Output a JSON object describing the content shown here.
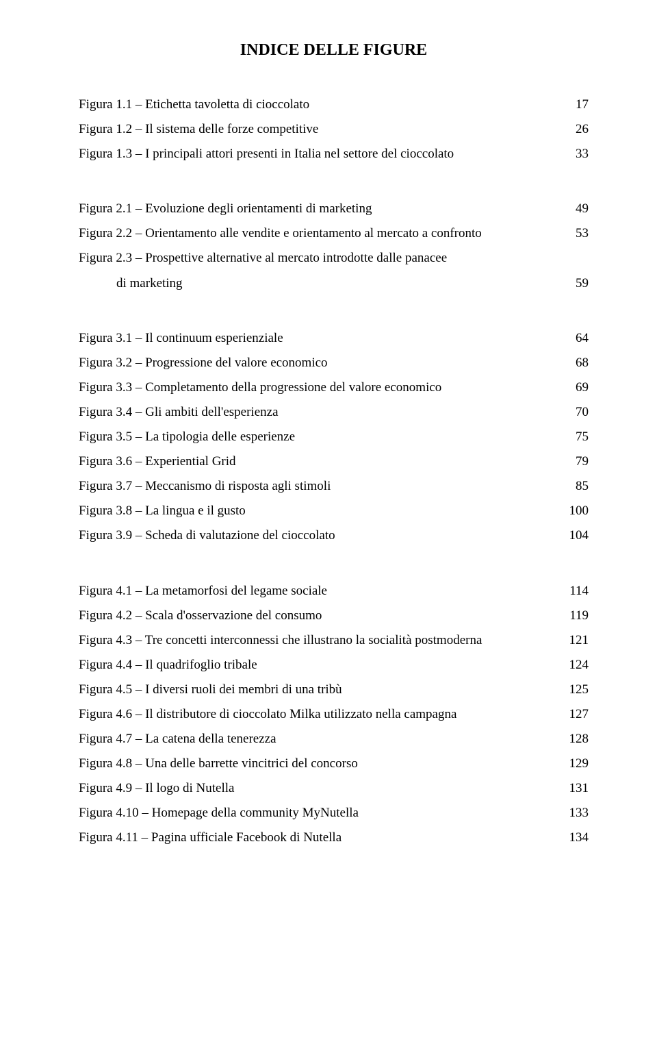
{
  "title": "INDICE DELLE FIGURE",
  "typography": {
    "title_fontsize": 24,
    "title_weight": "bold",
    "body_fontsize": 19,
    "font_family": "Times New Roman",
    "text_color": "#000000",
    "background_color": "#ffffff",
    "line_height": 1.9
  },
  "sections": [
    {
      "entries": [
        {
          "text": "Figura 1.1 – Etichetta tavoletta di cioccolato",
          "page": "17"
        },
        {
          "text": "Figura 1.2 – Il sistema delle forze competitive",
          "page": "26"
        },
        {
          "text": "Figura 1.3 – I principali attori presenti in Italia nel settore del cioccolato",
          "page": "33"
        }
      ]
    },
    {
      "entries": [
        {
          "text": "Figura 2.1 – Evoluzione degli orientamenti di marketing",
          "page": "49"
        },
        {
          "text": "Figura 2.2 – Orientamento alle vendite e orientamento al mercato a confronto",
          "page": "53"
        },
        {
          "text": "Figura 2.3 – Prospettive alternative al mercato introdotte dalle panacee",
          "page": ""
        },
        {
          "text": "di marketing",
          "page": "59",
          "indent": true
        }
      ]
    },
    {
      "entries": [
        {
          "text": "Figura 3.1 – Il continuum esperienziale",
          "page": "64"
        },
        {
          "text": "Figura 3.2 – Progressione del valore economico",
          "page": "68"
        },
        {
          "text": "Figura 3.3 – Completamento della progressione del valore economico",
          "page": "69"
        },
        {
          "text": "Figura 3.4 – Gli ambiti dell'esperienza",
          "page": "70"
        },
        {
          "text": "Figura 3.5 – La tipologia delle esperienze",
          "page": "75"
        },
        {
          "text": "Figura 3.6 – Experiential Grid",
          "page": "79"
        },
        {
          "text": "Figura 3.7 – Meccanismo di risposta agli stimoli",
          "page": "85"
        },
        {
          "text": "Figura 3.8 – La lingua e il gusto",
          "page": "100"
        },
        {
          "text": "Figura 3.9 – Scheda di valutazione del cioccolato",
          "page": "104"
        }
      ]
    },
    {
      "entries": [
        {
          "text": "Figura 4.1 – La metamorfosi del legame sociale",
          "page": "114"
        },
        {
          "text": "Figura 4.2 – Scala d'osservazione del consumo",
          "page": "119"
        },
        {
          "text": "Figura 4.3 – Tre concetti interconnessi che illustrano la socialità postmoderna",
          "page": "121"
        },
        {
          "text": "Figura 4.4 – Il quadrifoglio tribale",
          "page": "124"
        },
        {
          "text": "Figura 4.5 – I diversi ruoli dei membri di una tribù",
          "page": "125"
        },
        {
          "text": "Figura 4.6 – Il distributore di cioccolato Milka utilizzato nella campagna",
          "page": "127"
        },
        {
          "text": "Figura 4.7 – La catena della tenerezza",
          "page": "128"
        },
        {
          "text": "Figura 4.8 – Una delle barrette vincitrici del concorso",
          "page": "129"
        },
        {
          "text": "Figura 4.9 – Il logo di Nutella",
          "page": "131"
        },
        {
          "text": "Figura 4.10 – Homepage della community MyNutella",
          "page": "133"
        },
        {
          "text": "Figura 4.11 – Pagina ufficiale Facebook di Nutella",
          "page": "134"
        }
      ]
    }
  ]
}
